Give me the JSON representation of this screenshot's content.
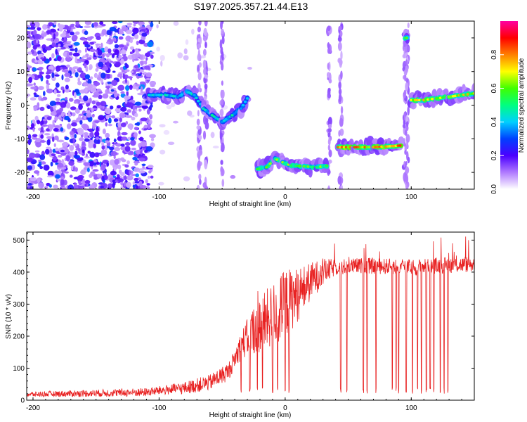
{
  "title": "S197.2025.357.21.44.E13",
  "chart_data": [
    {
      "type": "heatmap",
      "name": "spectrogram",
      "xlabel": "Height of straight line (km)",
      "ylabel": "Frequency (Hz)",
      "xlim": [
        -205,
        150
      ],
      "ylim": [
        -25,
        25
      ],
      "xticks": [
        -200,
        -100,
        0,
        100
      ],
      "xtick_labels": [
        "-200",
        "-100",
        "0",
        "100"
      ],
      "yticks": [
        -20,
        -10,
        0,
        10,
        20
      ],
      "ytick_labels": [
        "-20",
        "-10",
        "0",
        "10",
        "20"
      ],
      "colorbar": {
        "label": "Normalized spectral amplitude",
        "range": [
          0,
          1
        ],
        "ticks": [
          0,
          0.2,
          0.4,
          0.6,
          0.8
        ],
        "tick_labels": [
          "0.0",
          "0.2",
          "0.4",
          "0.6",
          "0.8"
        ],
        "colors": [
          "#ffffff",
          "#b07aff",
          "#4b00ff",
          "#0040ff",
          "#00d0ff",
          "#00ff80",
          "#40ff00",
          "#ffff00",
          "#ff8000",
          "#ff0000",
          "#ff00a0"
        ]
      },
      "noise_region_x": [
        -205,
        -105
      ],
      "traces": [
        {
          "name": "track-1",
          "points": [
            [
              -108,
              3
            ],
            [
              -95,
              3
            ],
            [
              -85,
              2.5
            ],
            [
              -78,
              4
            ],
            [
              -72,
              3
            ],
            [
              -65,
              -1
            ],
            [
              -58,
              -3
            ],
            [
              -50,
              -5
            ],
            [
              -42,
              -3
            ],
            [
              -35,
              -1
            ],
            [
              -30,
              2
            ]
          ],
          "amplitude": 0.45
        },
        {
          "name": "track-2",
          "points": [
            [
              -22,
              -19
            ],
            [
              -15,
              -18.5
            ],
            [
              -8,
              -16
            ],
            [
              -2,
              -17
            ],
            [
              5,
              -18
            ],
            [
              15,
              -18.2
            ],
            [
              25,
              -18.5
            ],
            [
              33,
              -18
            ]
          ],
          "amplitude": 0.6
        },
        {
          "name": "track-3",
          "points": [
            [
              42,
              -12.5
            ],
            [
              55,
              -12.5
            ],
            [
              70,
              -12.5
            ],
            [
              80,
              -12.3
            ],
            [
              92,
              -12
            ]
          ],
          "amplitude": 0.8
        },
        {
          "name": "track-4",
          "points": [
            [
              95,
              20
            ],
            [
              97,
              20
            ]
          ],
          "amplitude": 0.6
        },
        {
          "name": "track-5",
          "points": [
            [
              100,
              1.5
            ],
            [
              110,
              1.5
            ],
            [
              120,
              2
            ],
            [
              130,
              2.5
            ],
            [
              140,
              3
            ],
            [
              150,
              3.5
            ]
          ],
          "amplitude": 0.7
        }
      ],
      "vertical_bands_x": [
        -68,
        -63,
        -50,
        35,
        44,
        95,
        97
      ]
    },
    {
      "type": "line",
      "name": "snr",
      "xlabel": "Height of straight line (km)",
      "ylabel": "SNR (10 * v/v)",
      "xlim": [
        -205,
        150
      ],
      "ylim": [
        0,
        525
      ],
      "xticks": [
        -200,
        -100,
        0,
        100
      ],
      "xtick_labels": [
        "-200",
        "-100",
        "0",
        "100"
      ],
      "yticks": [
        0,
        100,
        200,
        300,
        400,
        500
      ],
      "ytick_labels": [
        "0",
        "100",
        "200",
        "300",
        "400",
        "500"
      ],
      "color": "#e82020",
      "baseline": {
        "x": [
          -205,
          -150,
          -110,
          -100,
          -80,
          -60,
          -45,
          -35,
          -25,
          -15,
          -5,
          0,
          10,
          20,
          30,
          40,
          60,
          80,
          100,
          120,
          150
        ],
        "y": [
          18,
          22,
          25,
          30,
          38,
          55,
          90,
          170,
          220,
          250,
          280,
          300,
          330,
          370,
          400,
          415,
          420,
          418,
          415,
          420,
          425
        ]
      },
      "noise_amplitude": {
        "x": [
          -205,
          -100,
          -40,
          -20,
          0,
          20,
          40,
          150
        ],
        "y": [
          8,
          14,
          30,
          90,
          110,
          60,
          25,
          25
        ]
      },
      "dropouts_x": [
        -35,
        -28,
        -22,
        -18,
        -10,
        -6,
        0,
        3,
        44,
        49,
        62,
        65,
        72,
        85,
        88,
        90,
        96,
        101,
        105,
        108,
        112,
        115,
        118,
        123,
        126,
        129
      ]
    }
  ]
}
